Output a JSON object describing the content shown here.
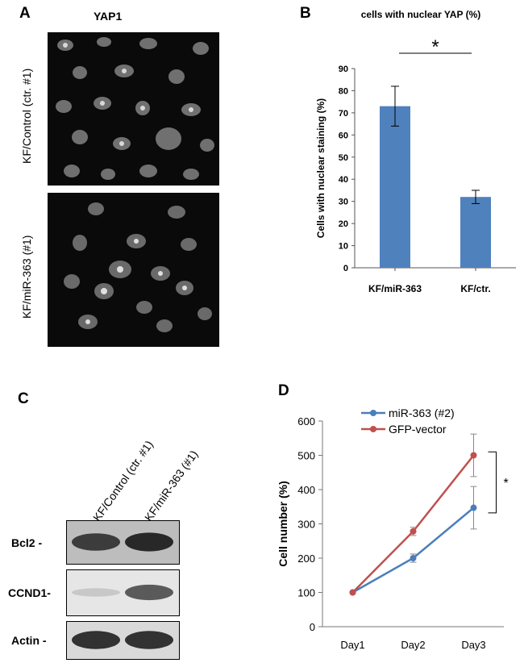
{
  "panels": {
    "a": "A",
    "b": "B",
    "c": "C",
    "d": "D"
  },
  "panel_a": {
    "title": "YAP1",
    "row_labels": [
      "KF/Control (ctr. #1)",
      "KF/miR-363 (#1)"
    ]
  },
  "panel_c": {
    "lane_labels": [
      "KF/Control (ctr. #1)",
      "KF/miR-363 (#1)"
    ],
    "blots": [
      {
        "label": "Bcl2 -",
        "band_intensity": [
          0.85,
          0.95
        ]
      },
      {
        "label": "CCND1-",
        "band_intensity": [
          0.15,
          0.7
        ]
      },
      {
        "label": "Actin -",
        "band_intensity": [
          0.9,
          0.9
        ]
      }
    ]
  },
  "chart_data": [
    {
      "type": "bar",
      "title": "cells with nuclear YAP (%)",
      "categories": [
        "KF/miR-363",
        "KF/ctr."
      ],
      "values": [
        73,
        32
      ],
      "errors": [
        9,
        3
      ],
      "ylabel": "Cells with nuclear staining (%)",
      "xlabel": "",
      "ylim": [
        0,
        90
      ],
      "yticks": [
        "0",
        "10",
        "20",
        "30",
        "40",
        "50",
        "60",
        "70",
        "80",
        "90"
      ],
      "bar_color": "#4f81bd",
      "significance": "*",
      "grid": false
    },
    {
      "type": "line",
      "categories": [
        "Day1",
        "Day2",
        "Day3"
      ],
      "series": [
        {
          "name": "miR-363 (#2)",
          "color": "#4a7ebb",
          "values": [
            100,
            200,
            347
          ],
          "errors": [
            0,
            12,
            62
          ]
        },
        {
          "name": "GFP-vector",
          "color": "#c0504d",
          "values": [
            100,
            278,
            500
          ],
          "errors": [
            0,
            12,
            62
          ]
        }
      ],
      "ylabel": "Cell number (%)",
      "xlabel": "",
      "ylim": [
        0,
        600
      ],
      "yticks": [
        "0",
        "100",
        "200",
        "300",
        "400",
        "500",
        "600"
      ],
      "legend": "top-left",
      "significance": "*",
      "grid": false
    }
  ]
}
